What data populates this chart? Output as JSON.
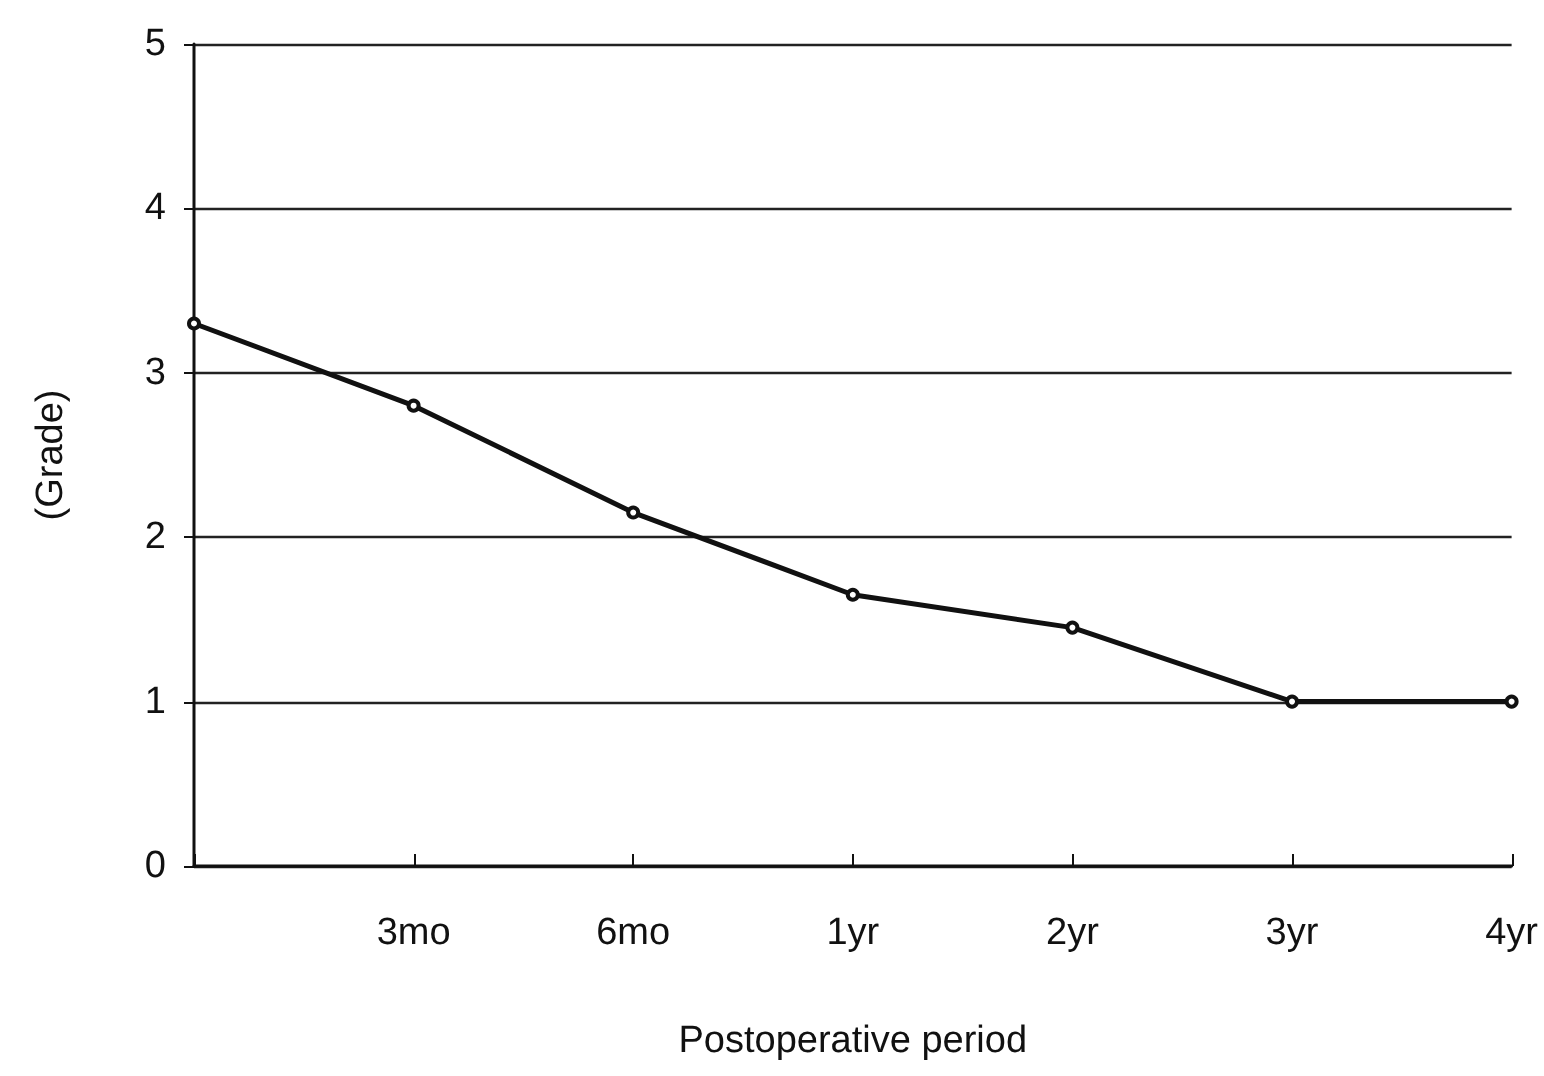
{
  "chart_data": {
    "type": "line",
    "xlabel": "Postoperative period",
    "ylabel": "(Grade)",
    "categories": [
      null,
      "3mo",
      "6mo",
      "1yr",
      "2yr",
      "3yr",
      "4yr"
    ],
    "series": [
      {
        "color": "#111111",
        "values": [
          3.3,
          2.8,
          2.15,
          1.65,
          1.45,
          1.0,
          1.0
        ]
      }
    ],
    "ylim": [
      0,
      5
    ],
    "yticks": [
      0,
      1,
      2,
      3,
      4,
      5
    ],
    "grid": "y",
    "marker": "circle",
    "line_style": "solid"
  }
}
